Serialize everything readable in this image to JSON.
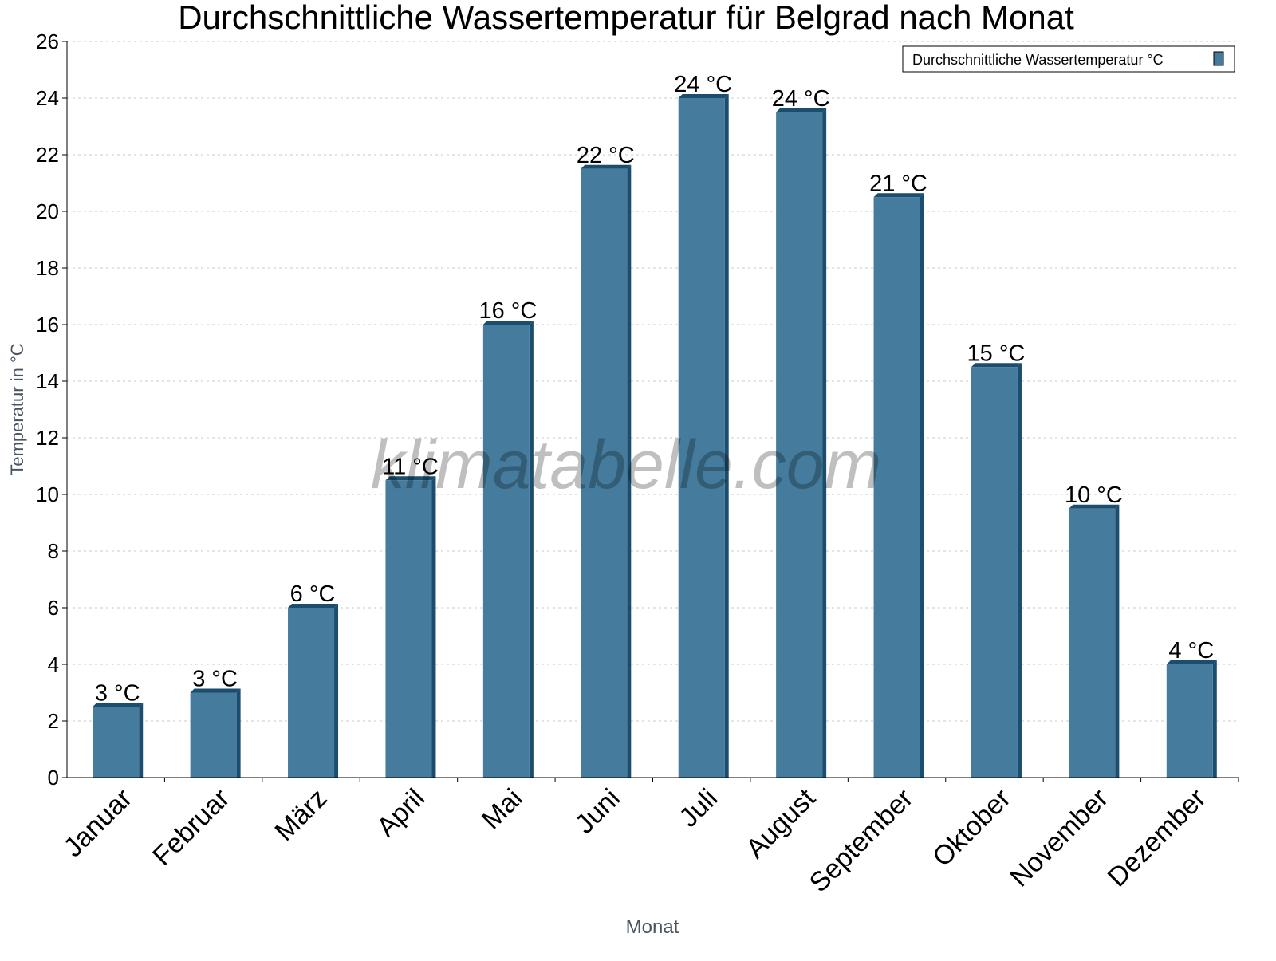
{
  "chart_data": {
    "type": "bar",
    "title": "Durchschnittliche Wassertemperatur für Belgrad nach Monat",
    "xlabel": "Monat",
    "ylabel": "Temperatur in °C",
    "ylim": [
      0,
      26
    ],
    "yticks": [
      "0",
      "2",
      "4",
      "6",
      "8",
      "10",
      "12",
      "14",
      "16",
      "18",
      "20",
      "22",
      "24",
      "26"
    ],
    "grid": true,
    "legend_position": "top-right",
    "categories": [
      "Januar",
      "Februar",
      "März",
      "April",
      "Mai",
      "Juni",
      "Juli",
      "August",
      "September",
      "Oktober",
      "November",
      "Dezember"
    ],
    "series": [
      {
        "name": "Durchschnittliche Wassertemperatur °C",
        "color": "#457b9d",
        "side_color": "#1b4d6e",
        "values": [
          2.5,
          3,
          6,
          10.5,
          16,
          21.5,
          24,
          23.5,
          20.5,
          14.5,
          9.5,
          4
        ],
        "labels": [
          "3 °C",
          "3 °C",
          "6 °C",
          "11 °C",
          "16 °C",
          "22 °C",
          "24 °C",
          "24 °C",
          "21 °C",
          "15 °C",
          "10 °C",
          "4 °C"
        ]
      }
    ],
    "watermark": "klimatabelle.com"
  }
}
